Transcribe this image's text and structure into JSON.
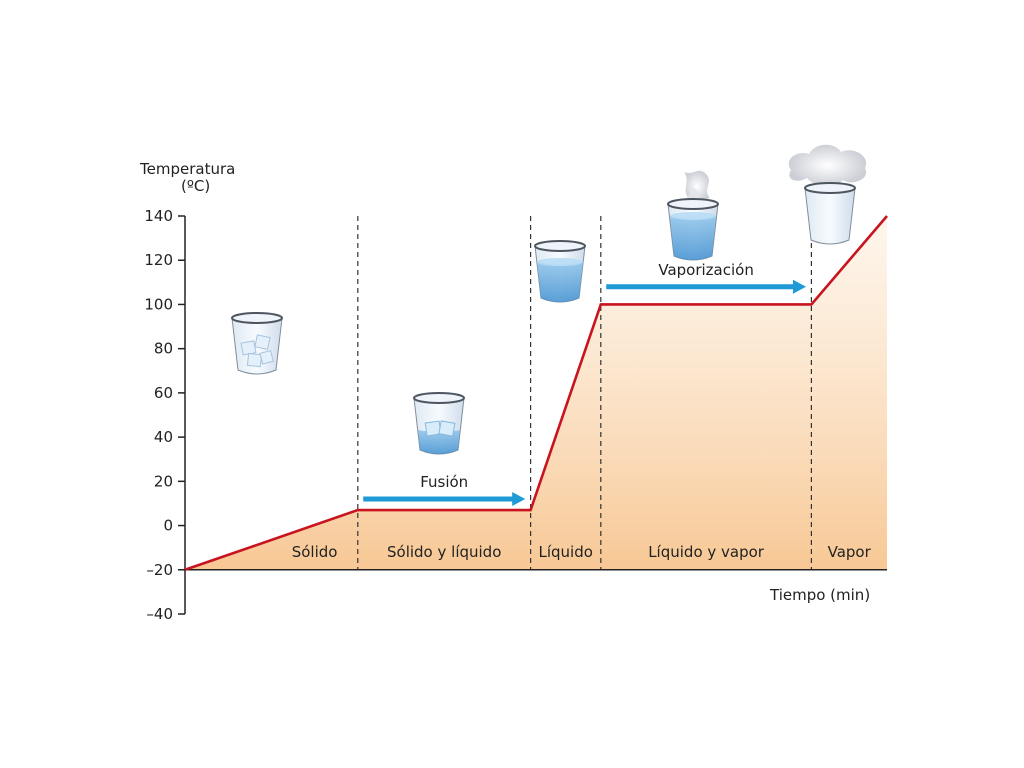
{
  "chart_data": {
    "type": "line",
    "ylabel_line1": "Temperatura",
    "ylabel_line2": "(ºC)",
    "xlabel": "Tiempo (min)",
    "ylim": [
      -40,
      140
    ],
    "yticks": [
      140,
      120,
      100,
      80,
      60,
      40,
      20,
      0,
      -20,
      -40
    ],
    "ytick_labels": [
      "140",
      "120",
      "100",
      "80",
      "60",
      "40",
      "20",
      "0",
      "–20",
      "–40"
    ],
    "series": [
      {
        "x": [
          0,
          3.2,
          6.4,
          7.7,
          11.6,
          13.0
        ],
        "y": [
          -20,
          7,
          7,
          100,
          100,
          140
        ]
      }
    ],
    "phase_boundaries": [
      3.2,
      6.4,
      7.7,
      11.6
    ],
    "phases": [
      {
        "label": "Sólido",
        "x": 2.4
      },
      {
        "label": "Sólido y líquido",
        "x": 4.8
      },
      {
        "label": "Líquido",
        "x": 7.05
      },
      {
        "label": "Líquido y vapor",
        "x": 9.65
      },
      {
        "label": "Vapor",
        "x": 12.3
      }
    ],
    "arrows": [
      {
        "label": "Fusión",
        "x_from": 3.3,
        "x_to": 6.3,
        "y": 12
      },
      {
        "label": "Vaporización",
        "x_from": 7.8,
        "x_to": 11.5,
        "y": 108
      }
    ],
    "xmax": 13.0,
    "colors": {
      "line": "#c8141e",
      "arrow": "#1e9bd7",
      "fill": "#f7c58f",
      "axis": "#222222"
    }
  },
  "icons": [
    "glass-ice-icon",
    "glass-melting-ice-icon",
    "glass-water-icon",
    "glass-steaming-water-icon",
    "glass-vapor-icon"
  ]
}
